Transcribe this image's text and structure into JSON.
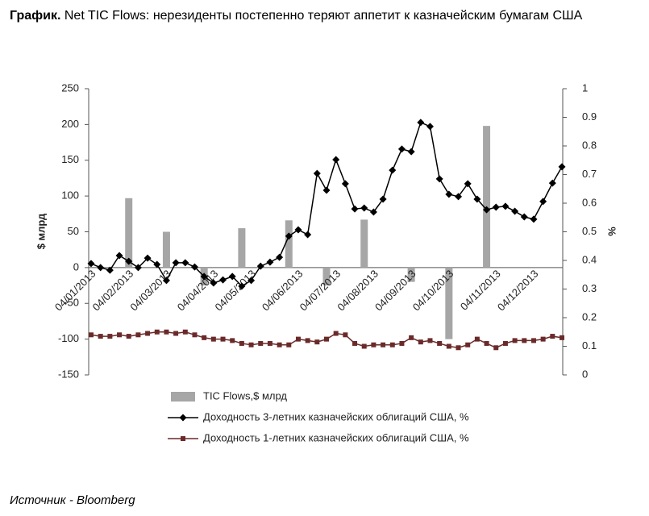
{
  "chart_data": {
    "type": "combo",
    "title_label": "График.",
    "title": "Net TIC Flows: нерезиденты постепенно теряют аппетит к казначейским бумагам США",
    "source": "Источник - Bloomberg",
    "ylabel": "$ млрд",
    "y2label": "%",
    "categories": [
      "04/01/2013",
      null,
      null,
      null,
      "04/02/2013",
      null,
      null,
      null,
      "04/03/2013",
      null,
      null,
      null,
      null,
      "04/04/2013",
      null,
      null,
      null,
      "04/05/2013",
      null,
      null,
      null,
      null,
      "04/06/2013",
      null,
      null,
      null,
      "04/07/2013",
      null,
      null,
      null,
      "04/08/2013",
      null,
      null,
      null,
      "04/09/2013",
      null,
      null,
      null,
      "04/10/2013",
      null,
      null,
      null,
      null,
      "04/11/2013",
      null,
      null,
      null,
      "04/12/2013",
      null,
      null,
      null
    ],
    "ylim": [
      -150,
      250
    ],
    "yticks": [
      -150,
      -100,
      -50,
      0,
      50,
      100,
      150,
      200,
      250
    ],
    "y2lim": [
      0,
      1
    ],
    "y2ticks": [
      0,
      0.1,
      0.2,
      0.3,
      0.4,
      0.5,
      0.6,
      0.7,
      0.8,
      0.9,
      1
    ],
    "series": [
      {
        "name": "TIC Flows,$ млрд",
        "type": "bar",
        "color": "#a6a6a6",
        "values": [
          null,
          null,
          null,
          null,
          97,
          null,
          null,
          null,
          50,
          null,
          null,
          null,
          -25,
          null,
          null,
          null,
          55,
          null,
          null,
          null,
          null,
          66,
          null,
          null,
          null,
          -25,
          null,
          null,
          null,
          67,
          null,
          null,
          null,
          null,
          -20,
          null,
          null,
          null,
          -100,
          null,
          null,
          null,
          198,
          null,
          null,
          null,
          null,
          null,
          null,
          null,
          null
        ]
      },
      {
        "name": "Доходность 3-летних казначейских облигаций США, %",
        "type": "line",
        "marker": "diamond",
        "axis": "y2",
        "color": "#000000",
        "values": [
          0.389,
          0.375,
          0.366,
          0.417,
          0.397,
          0.375,
          0.408,
          0.386,
          0.33,
          0.392,
          0.392,
          0.377,
          0.344,
          0.321,
          0.332,
          0.344,
          0.31,
          0.33,
          0.38,
          0.394,
          0.411,
          0.485,
          0.507,
          0.49,
          0.704,
          0.645,
          0.752,
          0.668,
          0.58,
          0.583,
          0.569,
          0.614,
          0.715,
          0.789,
          0.78,
          0.882,
          0.868,
          0.685,
          0.631,
          0.623,
          0.668,
          0.614,
          0.577,
          0.586,
          0.589,
          0.572,
          0.552,
          0.544,
          0.606,
          0.67,
          0.727
        ]
      },
      {
        "name": "Доходность 1-летних казначейских облигаций США, %",
        "type": "line",
        "marker": "square",
        "axis": "y2",
        "color": "#6b2a2a",
        "values": [
          0.14,
          0.135,
          0.135,
          0.14,
          0.135,
          0.14,
          0.145,
          0.15,
          0.15,
          0.145,
          0.15,
          0.14,
          0.13,
          0.125,
          0.125,
          0.12,
          0.11,
          0.105,
          0.11,
          0.11,
          0.105,
          0.105,
          0.125,
          0.12,
          0.115,
          0.125,
          0.145,
          0.14,
          0.11,
          0.1,
          0.105,
          0.105,
          0.105,
          0.11,
          0.13,
          0.115,
          0.12,
          0.11,
          0.1,
          0.095,
          0.105,
          0.125,
          0.11,
          0.095,
          0.11,
          0.12,
          0.12,
          0.12,
          0.125,
          0.135,
          0.13
        ]
      }
    ]
  }
}
